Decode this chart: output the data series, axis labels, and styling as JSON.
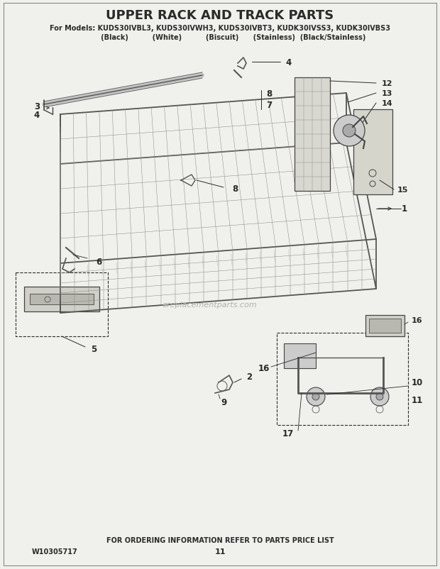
{
  "title": "UPPER RACK AND TRACK PARTS",
  "subtitle": "For Models: KUDS30IVBL3, KUDS30IVWH3, KUDS30IVBT3, KUDK30IVSS3, KUDK30IVBS3",
  "subtitle2": "           (Black)          (White)          (Biscuit)      (Stainless)  (Black/Stainless)",
  "footer_center": "FOR ORDERING INFORMATION REFER TO PARTS PRICE LIST",
  "footer_left": "W10305717",
  "footer_page": "11",
  "bg_color": "#f0f0ec",
  "line_color": "#2a2a2a",
  "title_fontsize": 13,
  "subtitle_fontsize": 7,
  "watermark": "ereplacementparts.com",
  "rack_color": "#c0c0b8",
  "rack_lw": 0.6
}
